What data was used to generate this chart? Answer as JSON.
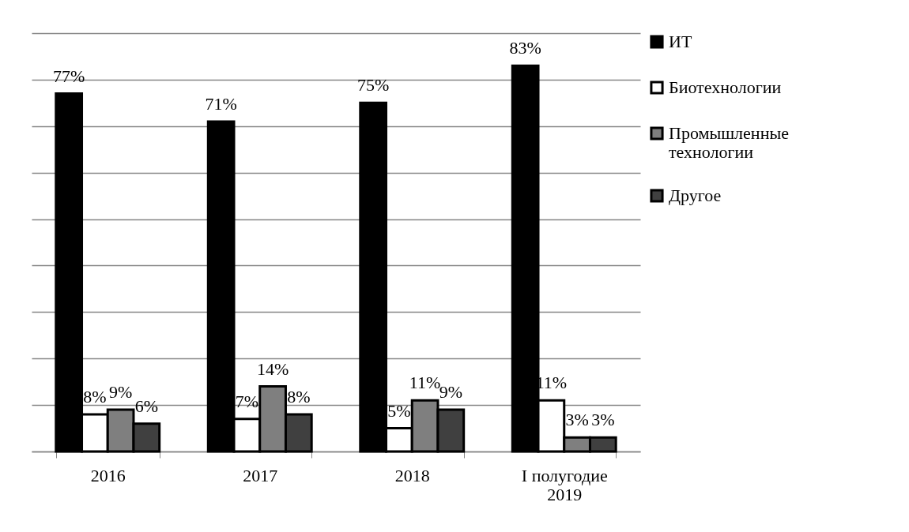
{
  "chart_data": {
    "type": "bar",
    "categories": [
      "2016",
      "2017",
      "2018",
      "I полугодие 2019"
    ],
    "series": [
      {
        "name": "ИТ",
        "color": "#000000",
        "values": [
          77,
          71,
          75,
          83
        ],
        "value_labels": [
          "77%",
          "71%",
          "75%",
          "83%"
        ]
      },
      {
        "name": "Биотехнологии",
        "color": "#ffffff",
        "values": [
          8,
          7,
          5,
          11
        ],
        "value_labels": [
          "8%",
          "7%",
          "5%",
          "11%"
        ]
      },
      {
        "name": "Промышленные технологии",
        "color": "#7f7f7f",
        "values": [
          9,
          14,
          11,
          3
        ],
        "value_labels": [
          "9%",
          "14%",
          "11%",
          "3%"
        ]
      },
      {
        "name": "Другое",
        "color": "#404040",
        "values": [
          6,
          8,
          9,
          3
        ],
        "value_labels": [
          "6%",
          "8%",
          "9%",
          "3%"
        ]
      }
    ],
    "ylim": [
      0,
      90
    ],
    "yticks": [
      0,
      10,
      20,
      30,
      40,
      50,
      60,
      70,
      80,
      90
    ],
    "grid": "y",
    "tick_labels": "x",
    "legend": "right"
  }
}
